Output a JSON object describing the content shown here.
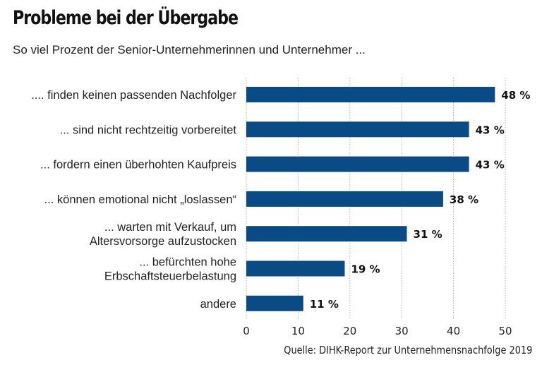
{
  "header": {
    "title": "Probleme bei der Übergabe",
    "subtitle": "So viel Prozent der Senior-Unternehmerinnen und Unternehmer ..."
  },
  "footer": {
    "source": "Quelle: DIHK-Report zur Unternehmensnachfolge 2019"
  },
  "colors": {
    "bar": "#0a4a85",
    "grid": "#b0b0b0"
  },
  "chart_data": {
    "type": "bar",
    "orientation": "horizontal",
    "title": "Probleme bei der Übergabe",
    "subtitle": "So viel Prozent der Senior-Unternehmerinnen und Unternehmer ...",
    "categories": [
      [
        ".... finden keinen passenden Nachfolger"
      ],
      [
        "... sind nicht rechtzeitig vorbereitet"
      ],
      [
        "... fordern einen überhohten Kaufpreis"
      ],
      [
        "... können emotional nicht „loslassen“"
      ],
      [
        "... warten mit Verkauf, um",
        "Altersvorsorge aufzustocken"
      ],
      [
        "... befürchten hohe",
        "Erbschaftsteuerbelastung"
      ],
      [
        "andere"
      ]
    ],
    "values": [
      48,
      43,
      43,
      38,
      31,
      19,
      11
    ],
    "value_labels": [
      "48 %",
      "43 %",
      "43 %",
      "38 %",
      "31 %",
      "19 %",
      "11 %"
    ],
    "xlim": [
      0,
      50
    ],
    "xticks": [
      0,
      10,
      20,
      30,
      40,
      50
    ],
    "xlabel": "",
    "ylabel": "",
    "grid": true,
    "grid_style": "dotted vertical",
    "legend": "none",
    "source": "Quelle: DIHK-Report zur Unternehmensnachfolge 2019"
  }
}
